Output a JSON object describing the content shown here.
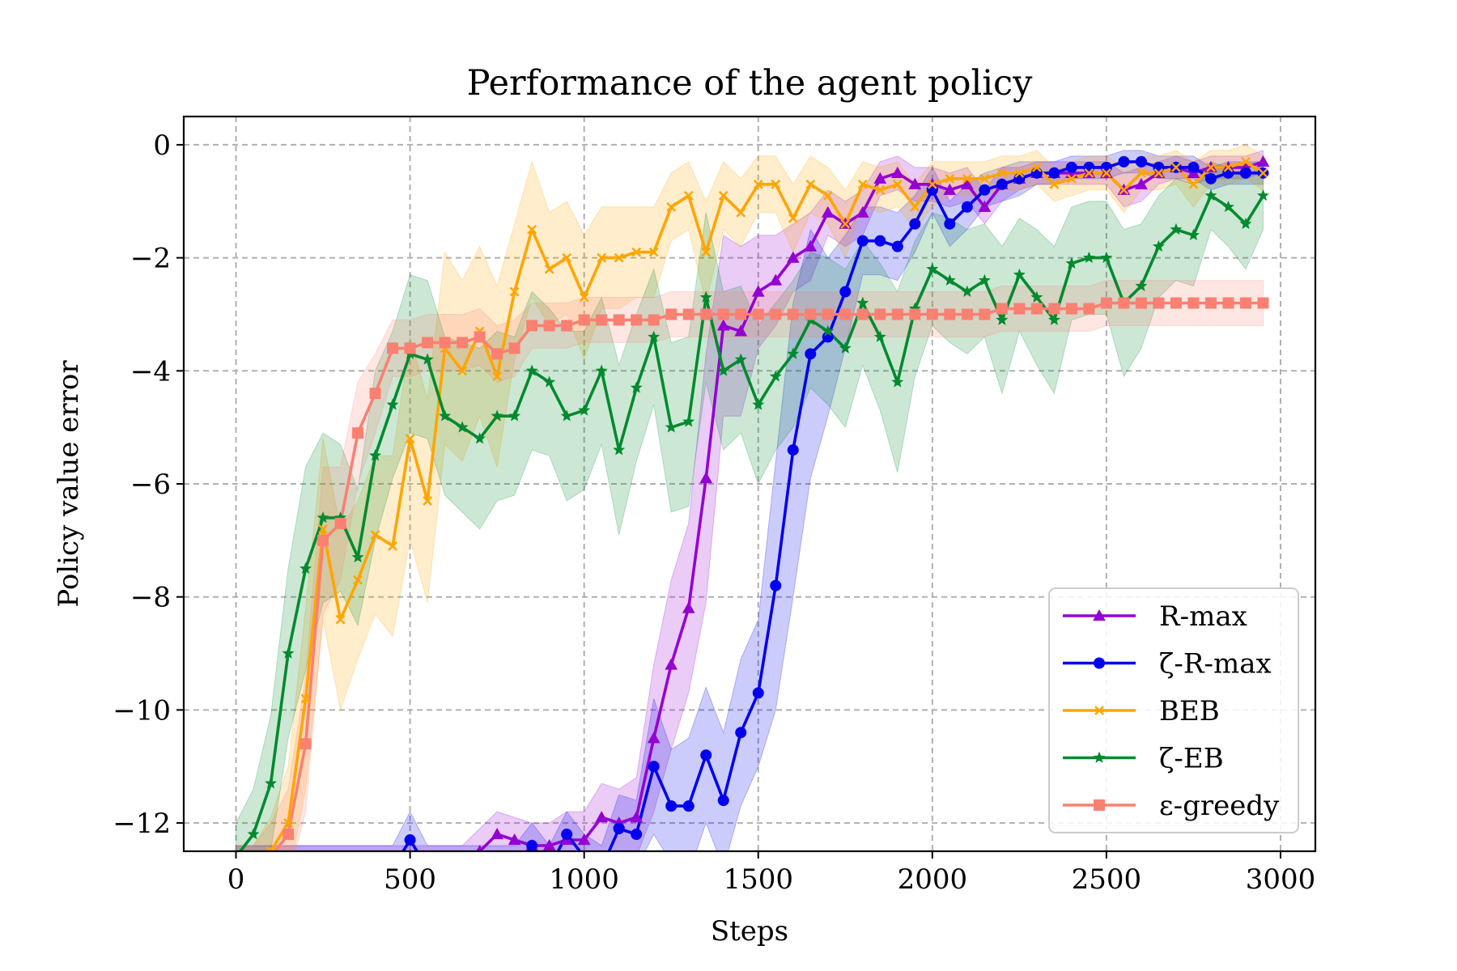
{
  "chart_data": {
    "type": "line",
    "title": "Performance of the agent policy",
    "xlabel": "Steps",
    "ylabel": "Policy value error",
    "xlim": [
      -150,
      3100
    ],
    "ylim": [
      -12.5,
      0.5
    ],
    "x_ticks": [
      0,
      500,
      1000,
      1500,
      2000,
      2500,
      3000
    ],
    "x_tick_labels": [
      "0",
      "500",
      "1000",
      "1500",
      "2000",
      "2500",
      "3000"
    ],
    "y_ticks": [
      0,
      -2,
      -4,
      -6,
      -8,
      -10,
      -12
    ],
    "y_tick_labels": [
      "0",
      "−2",
      "−4",
      "−6",
      "−8",
      "−10",
      "−12"
    ],
    "grid": true,
    "legend_position": "lower-right",
    "x": [
      0,
      50,
      100,
      150,
      200,
      250,
      300,
      350,
      400,
      450,
      500,
      550,
      600,
      650,
      700,
      750,
      800,
      850,
      900,
      950,
      1000,
      1050,
      1100,
      1150,
      1200,
      1250,
      1300,
      1350,
      1400,
      1450,
      1500,
      1550,
      1600,
      1650,
      1700,
      1750,
      1800,
      1850,
      1900,
      1950,
      2000,
      2050,
      2100,
      2150,
      2200,
      2250,
      2300,
      2350,
      2400,
      2450,
      2500,
      2550,
      2600,
      2650,
      2700,
      2750,
      2800,
      2850,
      2900,
      2950
    ],
    "series": [
      {
        "name": "R-max",
        "color": "#9400d3",
        "marker": "triangle",
        "values": [
          -12.8,
          -12.8,
          -12.8,
          -12.8,
          -12.8,
          -12.8,
          -12.8,
          -12.8,
          -12.8,
          -12.8,
          -12.8,
          -12.8,
          -12.8,
          -12.8,
          -12.5,
          -12.2,
          -12.3,
          -12.4,
          -12.4,
          -12.3,
          -12.3,
          -11.9,
          -12.0,
          -11.9,
          -10.5,
          -9.2,
          -8.2,
          -5.9,
          -3.2,
          -3.3,
          -2.6,
          -2.4,
          -2.0,
          -1.8,
          -1.2,
          -1.4,
          -1.2,
          -0.6,
          -0.5,
          -0.7,
          -0.7,
          -0.8,
          -0.7,
          -1.1,
          -0.7,
          -0.6,
          -0.5,
          -0.5,
          -0.5,
          -0.5,
          -0.5,
          -0.8,
          -0.7,
          -0.5,
          -0.4,
          -0.5,
          -0.4,
          -0.4,
          -0.4,
          -0.3
        ],
        "band": [
          0.4,
          0.4,
          0.4,
          0.4,
          0.4,
          0.4,
          0.4,
          0.4,
          0.4,
          0.4,
          0.4,
          0.4,
          0.4,
          0.4,
          0.4,
          0.4,
          0.4,
          0.4,
          0.4,
          0.5,
          0.5,
          0.6,
          0.6,
          0.7,
          1.3,
          1.5,
          1.5,
          2.2,
          1.6,
          1.5,
          1.0,
          0.8,
          0.6,
          0.6,
          0.4,
          0.4,
          0.4,
          0.3,
          0.3,
          0.3,
          0.3,
          0.3,
          0.3,
          0.3,
          0.3,
          0.2,
          0.2,
          0.2,
          0.2,
          0.2,
          0.2,
          0.3,
          0.3,
          0.2,
          0.2,
          0.2,
          0.2,
          0.2,
          0.2,
          0.2
        ]
      },
      {
        "name": "ζ-R-max",
        "color": "#0000ee",
        "marker": "circle",
        "values": [
          -12.8,
          -12.8,
          -12.8,
          -12.8,
          -12.8,
          -12.8,
          -12.8,
          -12.8,
          -12.8,
          -12.8,
          -12.3,
          -12.8,
          -12.8,
          -12.8,
          -12.8,
          -12.8,
          -12.8,
          -12.4,
          -12.8,
          -12.2,
          -12.6,
          -12.8,
          -12.1,
          -12.2,
          -11.0,
          -11.7,
          -11.7,
          -10.8,
          -11.6,
          -10.4,
          -9.7,
          -7.8,
          -5.4,
          -3.7,
          -3.4,
          -2.6,
          -1.7,
          -1.7,
          -1.8,
          -1.4,
          -0.8,
          -1.4,
          -1.1,
          -0.8,
          -0.7,
          -0.6,
          -0.5,
          -0.5,
          -0.4,
          -0.4,
          -0.4,
          -0.3,
          -0.3,
          -0.4,
          -0.4,
          -0.4,
          -0.6,
          -0.5,
          -0.5,
          -0.5
        ],
        "band": [
          0.4,
          0.4,
          0.4,
          0.4,
          0.4,
          0.4,
          0.4,
          0.4,
          0.4,
          0.4,
          0.5,
          0.4,
          0.4,
          0.4,
          0.4,
          0.4,
          0.4,
          0.4,
          0.4,
          0.4,
          0.4,
          0.4,
          0.6,
          0.6,
          1.2,
          1.0,
          1.2,
          1.2,
          1.2,
          1.3,
          1.3,
          2.2,
          2.6,
          2.2,
          1.4,
          1.0,
          0.6,
          0.6,
          0.6,
          0.5,
          0.4,
          0.4,
          0.4,
          0.3,
          0.3,
          0.3,
          0.2,
          0.2,
          0.2,
          0.2,
          0.2,
          0.2,
          0.2,
          0.2,
          0.2,
          0.2,
          0.2,
          0.2,
          0.2,
          0.2
        ]
      },
      {
        "name": "BEB",
        "color": "#ffa500",
        "marker": "x",
        "values": [
          -12.8,
          -12.8,
          -12.5,
          -12.0,
          -9.8,
          -6.8,
          -8.4,
          -7.7,
          -6.9,
          -7.1,
          -5.2,
          -6.3,
          -3.6,
          -4.0,
          -3.3,
          -4.1,
          -2.6,
          -1.5,
          -2.2,
          -2.0,
          -2.7,
          -2.0,
          -2.0,
          -1.9,
          -1.9,
          -1.1,
          -0.9,
          -1.9,
          -0.9,
          -1.2,
          -0.7,
          -0.7,
          -1.3,
          -0.7,
          -0.9,
          -1.4,
          -0.7,
          -0.8,
          -0.7,
          -1.1,
          -0.7,
          -0.6,
          -0.6,
          -0.6,
          -0.5,
          -0.5,
          -0.4,
          -0.7,
          -0.6,
          -0.5,
          -0.5,
          -0.8,
          -0.5,
          -0.5,
          -0.4,
          -0.7,
          -0.4,
          -0.4,
          -0.3,
          -0.5
        ],
        "band": [
          0.4,
          0.4,
          0.6,
          1.0,
          1.6,
          1.6,
          1.6,
          1.4,
          1.4,
          1.6,
          1.8,
          1.8,
          1.7,
          1.6,
          1.5,
          1.6,
          1.2,
          1.2,
          1.0,
          1.0,
          1.1,
          0.9,
          0.9,
          0.8,
          0.8,
          0.6,
          0.6,
          0.9,
          0.6,
          0.6,
          0.5,
          0.5,
          0.6,
          0.5,
          0.5,
          0.6,
          0.4,
          0.4,
          0.4,
          0.4,
          0.4,
          0.3,
          0.3,
          0.3,
          0.3,
          0.3,
          0.3,
          0.3,
          0.3,
          0.3,
          0.3,
          0.4,
          0.3,
          0.3,
          0.3,
          0.4,
          0.3,
          0.3,
          0.3,
          0.3
        ]
      },
      {
        "name": "ζ-EB",
        "color": "#008a2e",
        "marker": "star",
        "values": [
          -12.6,
          -12.2,
          -11.3,
          -9.0,
          -7.5,
          -6.6,
          -6.6,
          -7.3,
          -5.5,
          -4.6,
          -3.7,
          -3.8,
          -4.8,
          -5.0,
          -5.2,
          -4.8,
          -4.8,
          -4.0,
          -4.2,
          -4.8,
          -4.7,
          -4.0,
          -5.4,
          -4.3,
          -3.4,
          -5.0,
          -4.9,
          -2.7,
          -4.0,
          -3.8,
          -4.6,
          -4.1,
          -3.7,
          -3.1,
          -3.3,
          -3.6,
          -2.8,
          -3.4,
          -4.2,
          -2.9,
          -2.2,
          -2.4,
          -2.6,
          -2.4,
          -3.1,
          -2.3,
          -2.7,
          -3.1,
          -2.1,
          -2.0,
          -2.0,
          -2.8,
          -2.5,
          -1.8,
          -1.5,
          -1.6,
          -0.9,
          -1.1,
          -1.4,
          -0.9
        ],
        "band": [
          0.6,
          0.8,
          1.2,
          1.5,
          1.8,
          1.5,
          1.3,
          1.2,
          1.5,
          1.3,
          1.4,
          1.4,
          1.4,
          1.5,
          1.6,
          1.5,
          1.4,
          1.4,
          1.3,
          1.5,
          1.4,
          1.3,
          1.5,
          1.3,
          1.2,
          1.5,
          1.5,
          1.5,
          1.4,
          1.3,
          1.4,
          1.3,
          1.3,
          1.2,
          1.3,
          1.4,
          1.1,
          1.3,
          1.6,
          1.2,
          1.0,
          1.1,
          1.1,
          1.0,
          1.3,
          1.0,
          1.2,
          1.3,
          1.0,
          1.0,
          1.0,
          1.3,
          1.1,
          0.9,
          0.9,
          0.9,
          0.6,
          0.7,
          0.8,
          0.6
        ]
      },
      {
        "name": "ε-greedy",
        "color": "#fa8072",
        "marker": "square",
        "values": [
          -12.8,
          -12.8,
          -12.6,
          -12.2,
          -10.6,
          -7.0,
          -6.7,
          -5.1,
          -4.4,
          -3.6,
          -3.6,
          -3.5,
          -3.5,
          -3.5,
          -3.4,
          -3.7,
          -3.6,
          -3.2,
          -3.2,
          -3.2,
          -3.1,
          -3.1,
          -3.1,
          -3.1,
          -3.1,
          -3.0,
          -3.0,
          -3.0,
          -3.0,
          -3.0,
          -3.0,
          -3.0,
          -3.0,
          -3.0,
          -3.0,
          -3.0,
          -3.0,
          -3.0,
          -3.0,
          -3.0,
          -3.0,
          -3.0,
          -3.0,
          -3.0,
          -2.9,
          -2.9,
          -2.9,
          -2.9,
          -2.9,
          -2.9,
          -2.8,
          -2.8,
          -2.8,
          -2.8,
          -2.8,
          -2.8,
          -2.8,
          -2.8,
          -2.8,
          -2.8
        ],
        "band": [
          0.4,
          0.4,
          0.6,
          0.8,
          1.2,
          1.3,
          1.0,
          0.9,
          0.7,
          0.5,
          0.5,
          0.5,
          0.5,
          0.5,
          0.5,
          0.5,
          0.5,
          0.4,
          0.4,
          0.4,
          0.4,
          0.4,
          0.4,
          0.4,
          0.4,
          0.4,
          0.4,
          0.4,
          0.4,
          0.4,
          0.4,
          0.4,
          0.4,
          0.4,
          0.4,
          0.4,
          0.4,
          0.4,
          0.4,
          0.4,
          0.4,
          0.4,
          0.4,
          0.4,
          0.4,
          0.4,
          0.4,
          0.4,
          0.4,
          0.4,
          0.4,
          0.4,
          0.4,
          0.4,
          0.4,
          0.4,
          0.4,
          0.4,
          0.4,
          0.4
        ]
      }
    ]
  }
}
